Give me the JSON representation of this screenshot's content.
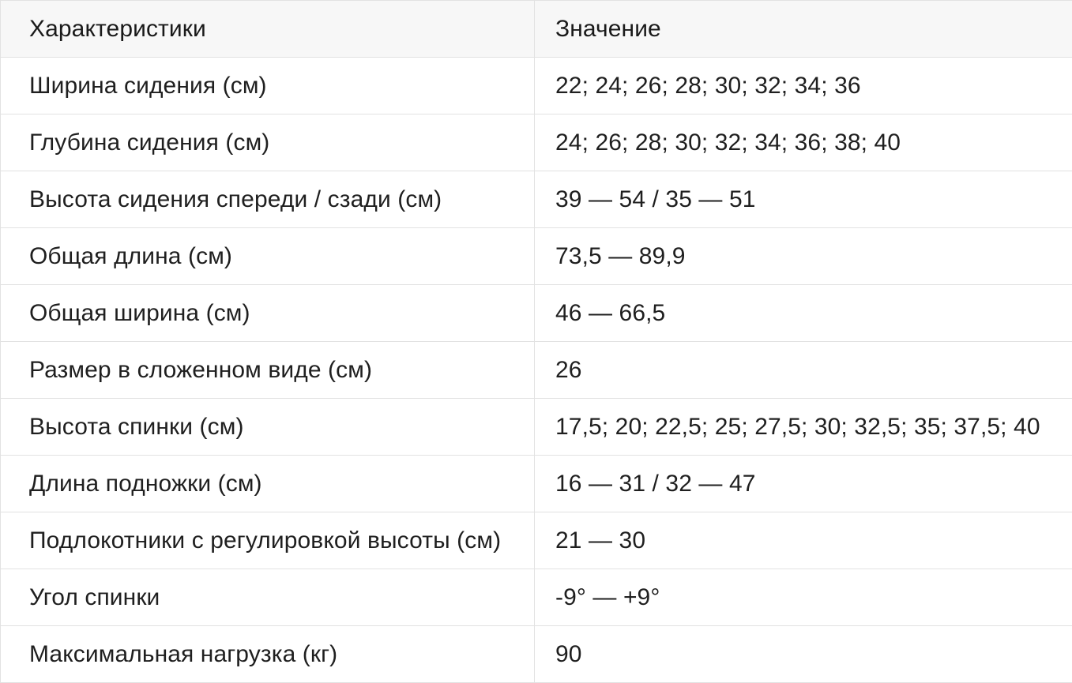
{
  "header": {
    "characteristic": "Характеристики",
    "value": "Значение"
  },
  "rows": [
    {
      "name": "Ширина сидения (см)",
      "value": "22; 24; 26; 28; 30; 32; 34; 36"
    },
    {
      "name": "Глубина сидения (см)",
      "value": "24; 26; 28; 30; 32; 34; 36; 38; 40"
    },
    {
      "name": "Высота сидения спереди / сзади (см)",
      "value": "39 — 54 / 35 — 51"
    },
    {
      "name": "Общая длина (см)",
      "value": "73,5 — 89,9"
    },
    {
      "name": "Общая ширина (см)",
      "value": "46 — 66,5"
    },
    {
      "name": "Размер в сложенном виде (см)",
      "value": "26"
    },
    {
      "name": "Высота спинки (см)",
      "value": "17,5; 20; 22,5; 25; 27,5; 30; 32,5; 35; 37,5; 40"
    },
    {
      "name": "Длина подножки (см)",
      "value": "16 — 31 / 32 — 47"
    },
    {
      "name": "Подлокотники с регулировкой высоты (см)",
      "value": "21 — 30"
    },
    {
      "name": "Угол спинки",
      "value": "-9° — +9°"
    },
    {
      "name": "Максимальная нагрузка (кг)",
      "value": "90"
    }
  ]
}
